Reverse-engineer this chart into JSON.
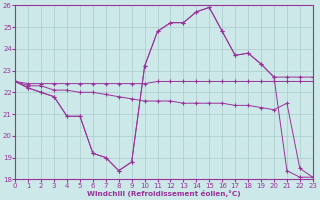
{
  "background_color": "#cce8e8",
  "grid_color": "#aacccc",
  "line_color": "#993399",
  "xlabel": "Windchill (Refroidissement éolien,°C)",
  "xlim": [
    0,
    23
  ],
  "ylim": [
    18,
    26
  ],
  "yticks": [
    18,
    19,
    20,
    21,
    22,
    23,
    24,
    25,
    26
  ],
  "xticks": [
    0,
    1,
    2,
    3,
    4,
    5,
    6,
    7,
    8,
    9,
    10,
    11,
    12,
    13,
    14,
    15,
    16,
    17,
    18,
    19,
    20,
    21,
    22,
    23
  ],
  "line1_x": [
    0,
    1,
    2,
    3,
    4,
    5,
    6,
    7,
    8,
    9,
    10,
    11,
    12,
    13,
    14,
    15,
    16,
    17,
    18,
    19,
    20,
    21,
    22,
    23
  ],
  "line1_y": [
    22.5,
    22.4,
    22.4,
    22.4,
    22.4,
    22.4,
    22.4,
    22.4,
    22.4,
    22.4,
    22.4,
    22.5,
    22.5,
    22.5,
    22.5,
    22.5,
    22.5,
    22.5,
    22.5,
    22.5,
    22.5,
    22.5,
    22.5,
    22.5
  ],
  "line2_x": [
    0,
    1,
    2,
    3,
    4,
    5,
    6,
    7,
    8,
    9,
    10,
    11,
    12,
    13,
    14,
    15,
    16,
    17,
    18,
    19,
    20,
    21,
    22,
    23
  ],
  "line2_y": [
    22.5,
    22.3,
    22.3,
    22.1,
    22.1,
    22.0,
    22.0,
    21.9,
    21.8,
    21.7,
    21.6,
    21.6,
    21.6,
    21.5,
    21.5,
    21.5,
    21.5,
    21.4,
    21.4,
    21.3,
    21.2,
    21.5,
    18.5,
    18.1
  ],
  "line3_x": [
    0,
    1,
    2,
    3,
    4,
    5,
    6,
    7,
    8,
    9,
    10,
    11,
    12,
    13,
    14,
    15,
    16,
    17,
    18,
    19,
    20,
    21,
    22,
    23
  ],
  "line3_y": [
    22.5,
    22.2,
    22.0,
    21.8,
    20.9,
    20.9,
    19.2,
    19.0,
    18.4,
    18.8,
    23.2,
    24.8,
    25.2,
    25.2,
    25.7,
    25.9,
    24.8,
    23.7,
    23.8,
    23.3,
    22.7,
    22.7,
    22.7,
    22.7
  ],
  "line4_x": [
    0,
    1,
    2,
    3,
    4,
    5,
    6,
    7,
    8,
    9,
    10,
    11,
    12,
    13,
    14,
    15,
    16,
    17,
    18,
    19,
    20,
    21,
    22,
    23
  ],
  "line4_y": [
    22.5,
    22.2,
    22.0,
    21.8,
    20.9,
    20.9,
    19.2,
    19.0,
    18.4,
    18.8,
    23.2,
    24.8,
    25.2,
    25.2,
    25.7,
    25.9,
    24.8,
    23.7,
    23.8,
    23.3,
    22.7,
    18.4,
    18.1,
    18.1
  ]
}
